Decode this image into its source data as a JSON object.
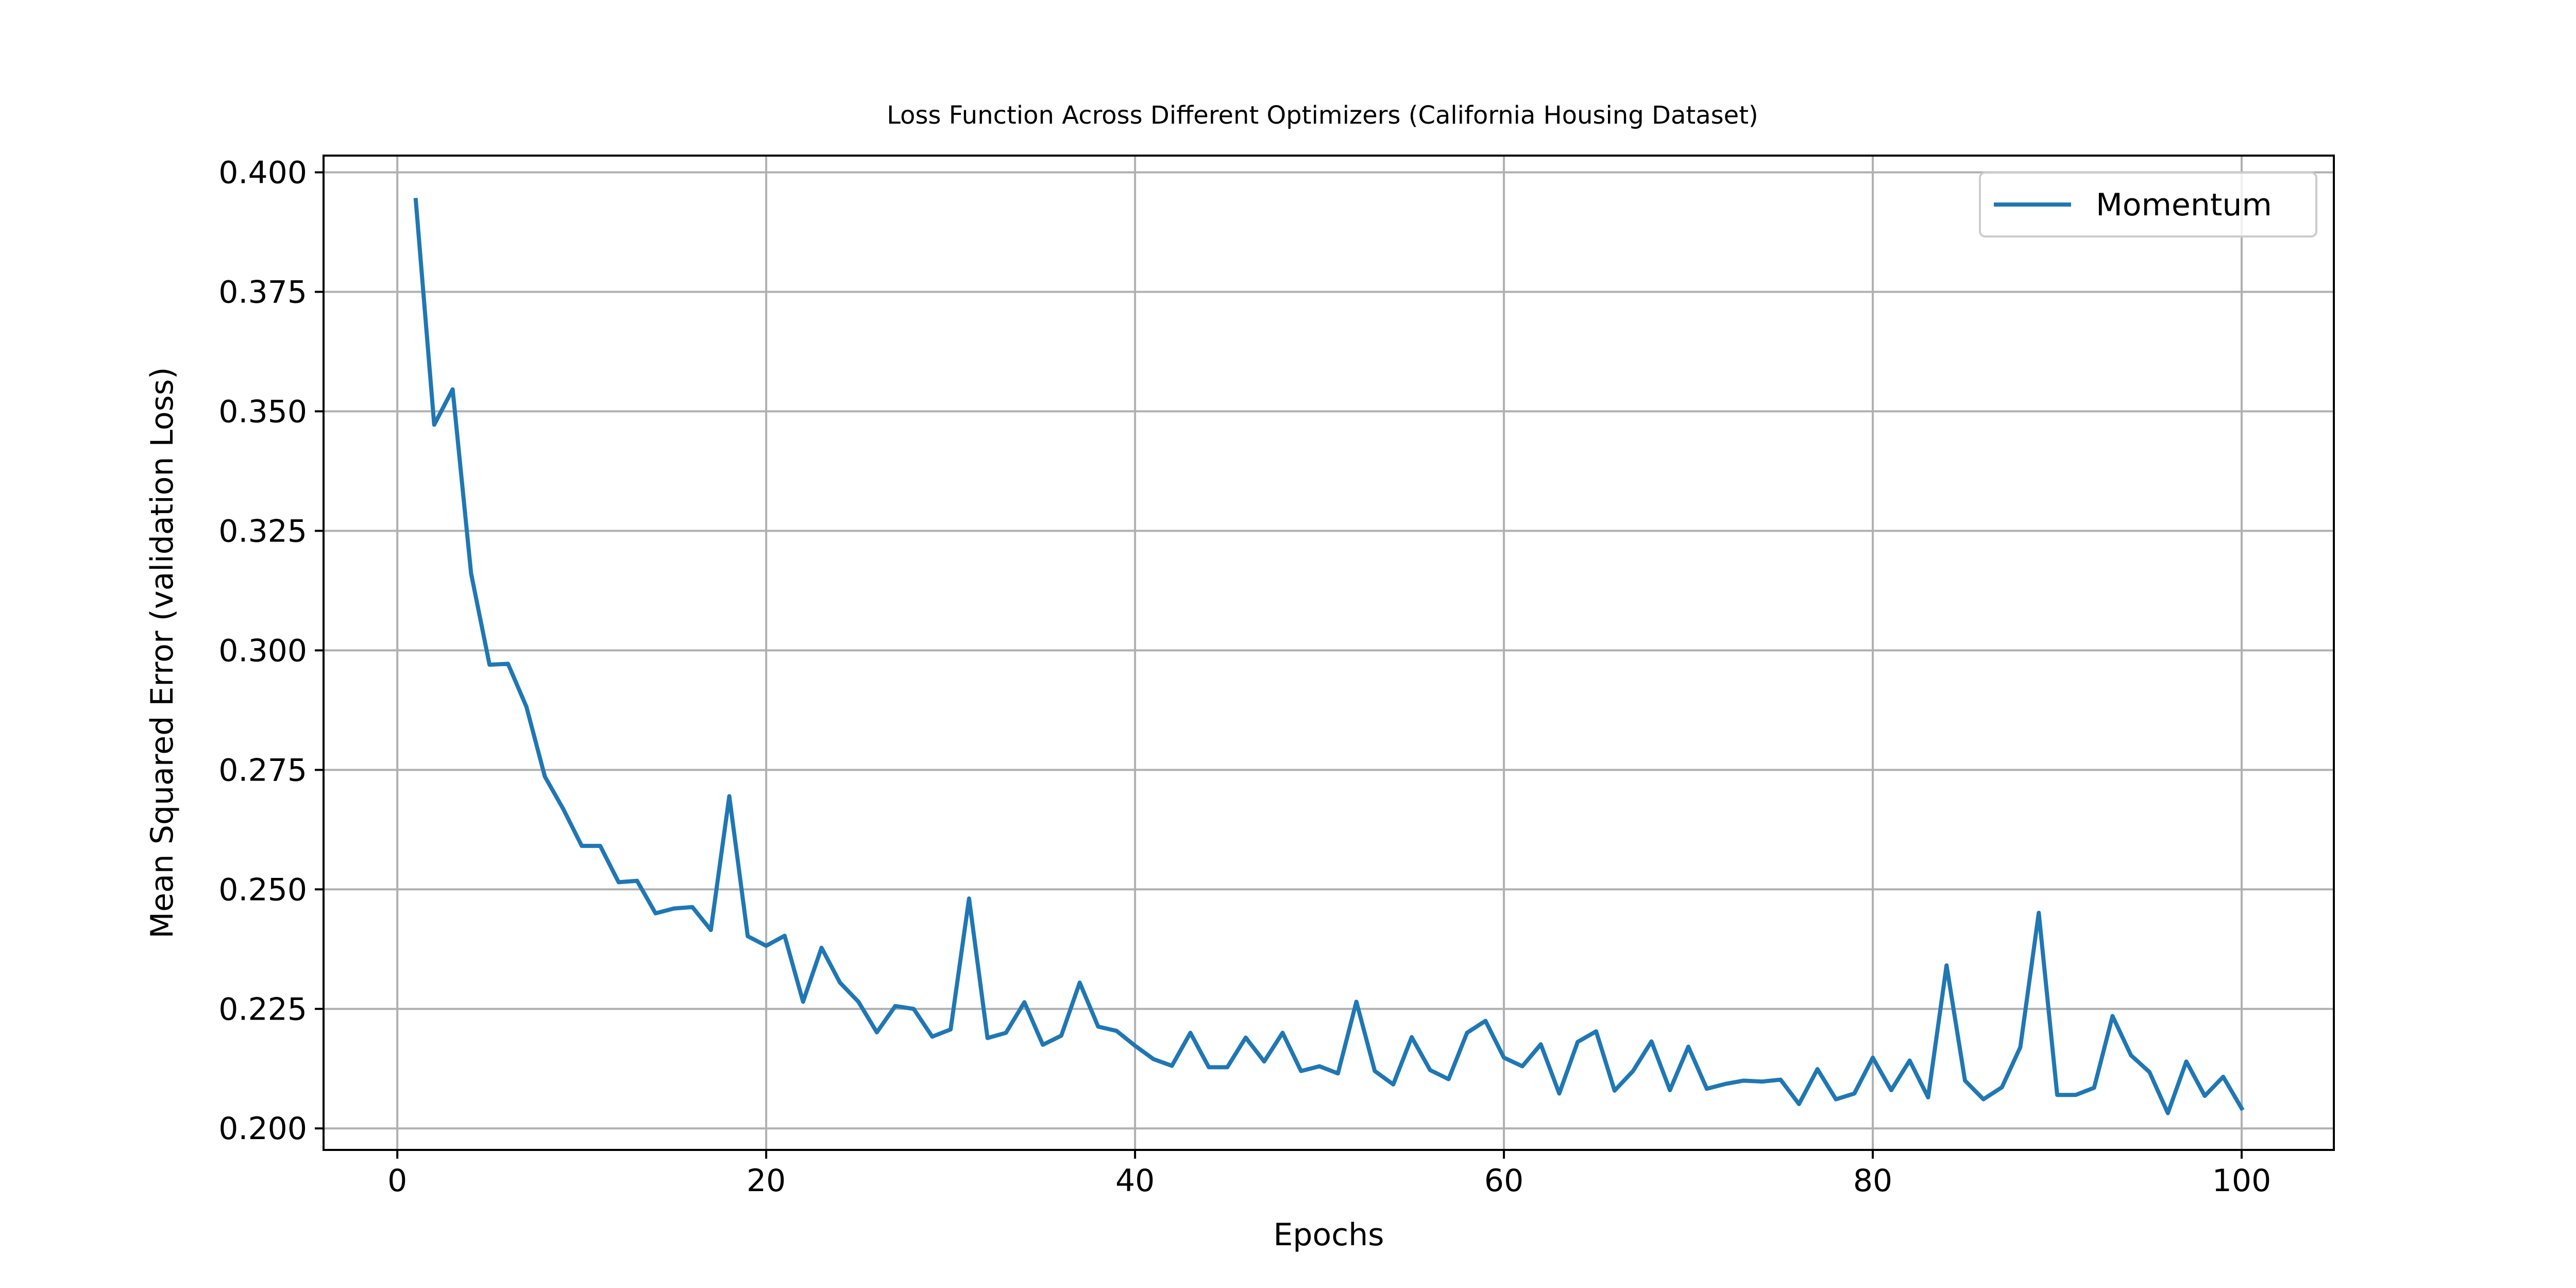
{
  "chart_data": {
    "type": "line",
    "title": "Loss Function Across Different Optimizers (California Housing Dataset)",
    "xlabel": "Epochs",
    "ylabel": "Mean Squared Error (validation Loss)",
    "xlim": [
      -4,
      105
    ],
    "ylim": [
      0.1955,
      0.4035
    ],
    "x_ticks": [
      0,
      20,
      40,
      60,
      80,
      100
    ],
    "y_ticks": [
      0.2,
      0.225,
      0.25,
      0.275,
      0.3,
      0.325,
      0.35,
      0.375,
      0.4
    ],
    "x_tick_labels": [
      "0",
      "20",
      "40",
      "60",
      "80",
      "100"
    ],
    "y_tick_labels": [
      "0.200",
      "0.225",
      "0.250",
      "0.275",
      "0.300",
      "0.325",
      "0.350",
      "0.375",
      "0.400"
    ],
    "grid": true,
    "legend_position": "top-right",
    "x": [
      1,
      2,
      3,
      4,
      5,
      6,
      7,
      8,
      9,
      10,
      11,
      12,
      13,
      14,
      15,
      16,
      17,
      18,
      19,
      20,
      21,
      22,
      23,
      24,
      25,
      26,
      27,
      28,
      29,
      30,
      31,
      32,
      33,
      34,
      35,
      36,
      37,
      38,
      39,
      40,
      41,
      42,
      43,
      44,
      45,
      46,
      47,
      48,
      49,
      50,
      51,
      52,
      53,
      54,
      55,
      56,
      57,
      58,
      59,
      60,
      61,
      62,
      63,
      64,
      65,
      66,
      67,
      68,
      69,
      70,
      71,
      72,
      73,
      74,
      75,
      76,
      77,
      78,
      79,
      80,
      81,
      82,
      83,
      84,
      85,
      86,
      87,
      88,
      89,
      90,
      91,
      92,
      93,
      94,
      95,
      96,
      97,
      98,
      99,
      100
    ],
    "series": [
      {
        "name": "Momentum",
        "color": "#1f77b4",
        "values": [
          0.3942,
          0.3472,
          0.3546,
          0.3161,
          0.297,
          0.2972,
          0.2882,
          0.2736,
          0.2668,
          0.2591,
          0.2591,
          0.2515,
          0.2518,
          0.245,
          0.246,
          0.2463,
          0.2415,
          0.2695,
          0.2402,
          0.2382,
          0.2403,
          0.2265,
          0.2378,
          0.2305,
          0.2265,
          0.2201,
          0.2256,
          0.225,
          0.2192,
          0.2207,
          0.2481,
          0.2189,
          0.22,
          0.2264,
          0.2175,
          0.2194,
          0.2305,
          0.2213,
          0.2204,
          0.2173,
          0.2145,
          0.2131,
          0.22,
          0.2128,
          0.2128,
          0.219,
          0.214,
          0.22,
          0.212,
          0.213,
          0.2115,
          0.2265,
          0.212,
          0.2092,
          0.2191,
          0.2122,
          0.2103,
          0.22,
          0.2225,
          0.2148,
          0.213,
          0.2176,
          0.2073,
          0.2181,
          0.2203,
          0.2079,
          0.212,
          0.2182,
          0.208,
          0.2171,
          0.2083,
          0.2093,
          0.21,
          0.2098,
          0.2102,
          0.2051,
          0.2124,
          0.2061,
          0.2073,
          0.2148,
          0.208,
          0.2142,
          0.2065,
          0.2341,
          0.21,
          0.2061,
          0.2086,
          0.217,
          0.2451,
          0.207,
          0.207,
          0.2085,
          0.2235,
          0.2153,
          0.2118,
          0.2032,
          0.214,
          0.2068,
          0.2108,
          0.2042
        ]
      }
    ]
  }
}
